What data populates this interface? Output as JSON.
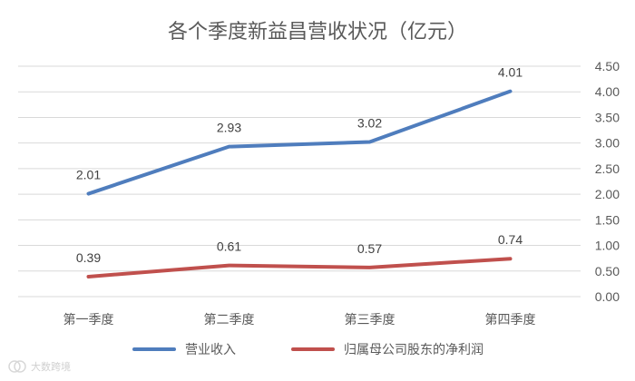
{
  "chart_data": {
    "type": "line",
    "title": "各个季度新益昌营收状况（亿元）",
    "categories": [
      "第一季度",
      "第二季度",
      "第三季度",
      "第四季度"
    ],
    "series": [
      {
        "name": "营业收入",
        "color": "#4f7dbd",
        "values": [
          2.01,
          2.93,
          3.02,
          4.01
        ],
        "labels": [
          "2.01",
          "2.93",
          "3.02",
          "4.01"
        ]
      },
      {
        "name": "归属母公司股东的净利润",
        "color": "#c0504d",
        "values": [
          0.39,
          0.61,
          0.57,
          0.74
        ],
        "labels": [
          "0.39",
          "0.61",
          "0.57",
          "0.74"
        ]
      }
    ],
    "ylim": [
      0,
      4.5
    ],
    "yticks": [
      "0.00",
      "0.50",
      "1.00",
      "1.50",
      "2.00",
      "2.50",
      "3.00",
      "3.50",
      "4.00",
      "4.50"
    ],
    "y_axis_side": "right",
    "grid": true,
    "legend": "bottom"
  },
  "watermark": {
    "text": "大数跨境",
    "icon": "watermark-logo-icon"
  }
}
